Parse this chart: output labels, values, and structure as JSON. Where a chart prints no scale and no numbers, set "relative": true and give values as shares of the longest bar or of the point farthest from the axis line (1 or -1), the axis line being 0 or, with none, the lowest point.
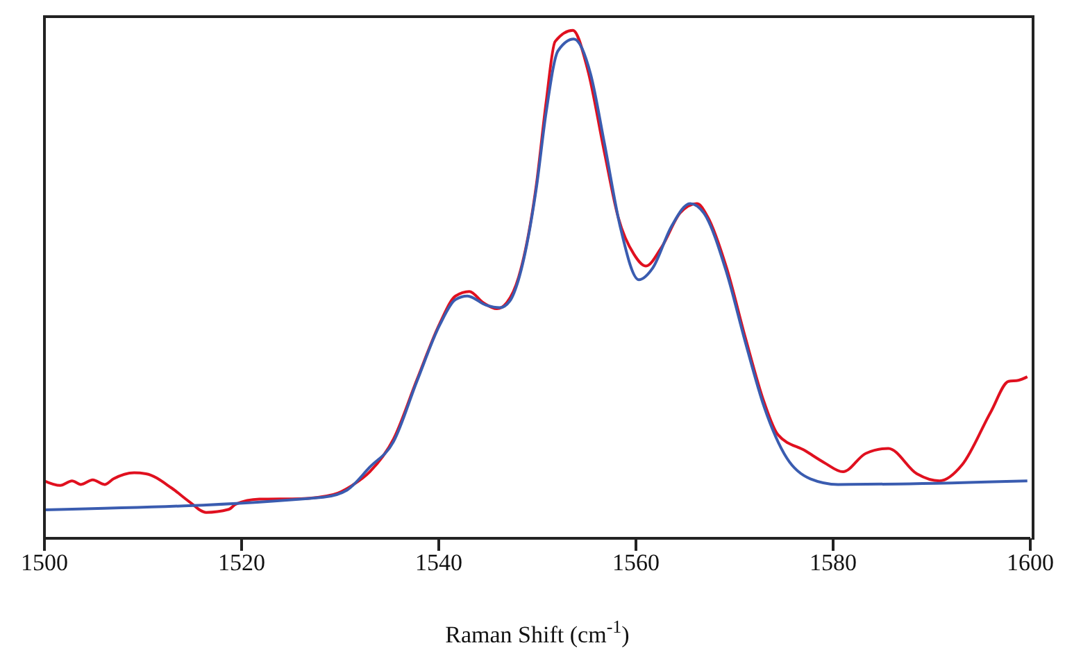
{
  "chart_data": {
    "type": "line",
    "xlabel": "Raman Shift (cm$^{-1}$)",
    "xlim": [
      1500,
      1600
    ],
    "xticks": [
      1500,
      1520,
      1540,
      1560,
      1580,
      1600
    ],
    "relative": true,
    "marker": "none",
    "line_style": "solid",
    "series": [
      {
        "color": "#e0101f",
        "x": [
          1500,
          1501.6,
          1502.8,
          1503.7,
          1504.9,
          1506.1,
          1507.0,
          1509.1,
          1510.3,
          1512.9,
          1514.7,
          1516.4,
          1518.7,
          1519.4,
          1521.8,
          1526.0,
          1529.3,
          1531.2,
          1533.0,
          1535.4,
          1537.8,
          1540.1,
          1541.7,
          1543.1,
          1544.5,
          1545.9,
          1546.9,
          1548.1,
          1549.9,
          1550.9,
          1551.8,
          1553.6,
          1555.1,
          1556.8,
          1558.2,
          1559.8,
          1561.0,
          1562.6,
          1564.5,
          1566.2,
          1567.3,
          1569.2,
          1571.1,
          1573.0,
          1574.4,
          1577.2,
          1579.1,
          1581.0,
          1583.3,
          1585.6,
          1588.5,
          1590.8,
          1593.1,
          1596.0,
          1597.8,
          1598.8,
          1599.7
        ],
        "values": [
          0.113,
          0.104,
          0.113,
          0.106,
          0.115,
          0.106,
          0.117,
          0.129,
          0.127,
          0.099,
          0.072,
          0.051,
          0.057,
          0.067,
          0.077,
          0.078,
          0.086,
          0.104,
          0.131,
          0.195,
          0.313,
          0.423,
          0.477,
          0.486,
          0.464,
          0.452,
          0.464,
          0.514,
          0.696,
          0.86,
          0.978,
          1.0,
          0.923,
          0.76,
          0.632,
          0.559,
          0.536,
          0.573,
          0.641,
          0.659,
          0.632,
          0.532,
          0.395,
          0.268,
          0.204,
          0.172,
          0.149,
          0.131,
          0.167,
          0.177,
          0.127,
          0.113,
          0.145,
          0.249,
          0.309,
          0.311,
          0.318
        ]
      },
      {
        "color": "#3a5cb0",
        "x": [
          1500,
          1528.3,
          1530.7,
          1533.0,
          1535.4,
          1537.8,
          1540.1,
          1541.7,
          1542.9,
          1544.8,
          1546.2,
          1547.2,
          1548.1,
          1549.9,
          1550.9,
          1552.1,
          1553.7,
          1555.4,
          1556.8,
          1558.4,
          1560.3,
          1561.7,
          1563.6,
          1565.5,
          1566.9,
          1569.2,
          1571.1,
          1573.0,
          1575.3,
          1577.7,
          1580.5,
          1586.6,
          1599.7
        ],
        "values": [
          0.056,
          0.081,
          0.095,
          0.14,
          0.19,
          0.31,
          0.42,
          0.47,
          0.477,
          0.459,
          0.454,
          0.467,
          0.51,
          0.69,
          0.84,
          0.96,
          0.983,
          0.914,
          0.778,
          0.614,
          0.509,
          0.532,
          0.614,
          0.659,
          0.64,
          0.523,
          0.386,
          0.259,
          0.158,
          0.117,
          0.106,
          0.107,
          0.113
        ]
      }
    ]
  }
}
